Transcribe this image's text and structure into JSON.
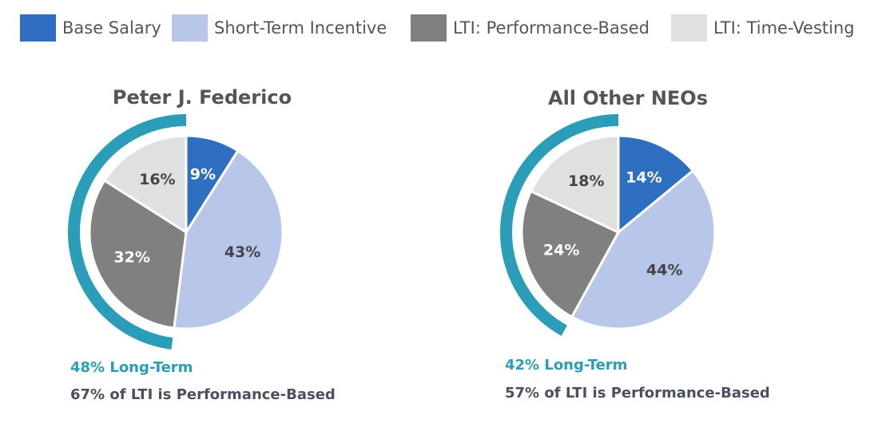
{
  "legend": {
    "items": [
      {
        "name": "Base Salary",
        "color": "#2e6fc2"
      },
      {
        "name": "Short-Term Incentive",
        "color": "#b8c6ea"
      },
      {
        "name": "LTI: Performance-Based",
        "color": "#808080"
      },
      {
        "name": "LTI: Time-Vesting",
        "color": "#e0e0e0"
      }
    ]
  },
  "chart_data": [
    {
      "type": "pie",
      "title": "Peter J. Federico",
      "values": [
        9,
        43,
        32,
        16
      ],
      "value_labels": [
        "9%",
        "43%",
        "32%",
        "16%"
      ],
      "annotations": [
        "48% Long-Term",
        "67% of LTI is Performance-Based"
      ]
    },
    {
      "type": "pie",
      "title": "All Other NEOs",
      "values": [
        14,
        44,
        24,
        18
      ],
      "value_labels": [
        "14%",
        "44%",
        "24%",
        "18%"
      ],
      "annotations": [
        "42% Long-Term",
        "57% of LTI is Performance-Based"
      ]
    }
  ]
}
